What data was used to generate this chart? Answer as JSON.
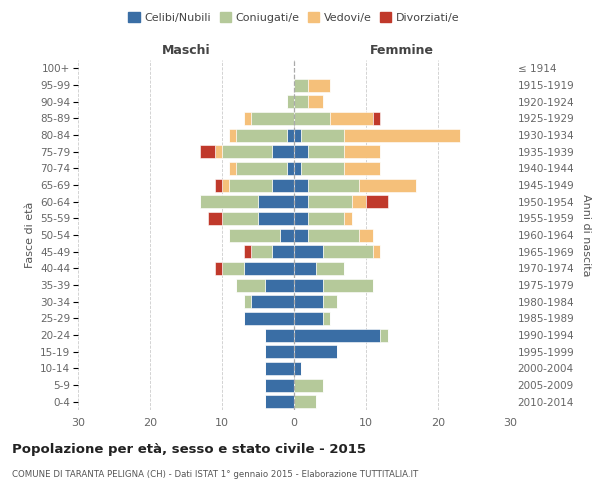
{
  "age_groups": [
    "0-4",
    "5-9",
    "10-14",
    "15-19",
    "20-24",
    "25-29",
    "30-34",
    "35-39",
    "40-44",
    "45-49",
    "50-54",
    "55-59",
    "60-64",
    "65-69",
    "70-74",
    "75-79",
    "80-84",
    "85-89",
    "90-94",
    "95-99",
    "100+"
  ],
  "birth_years": [
    "2010-2014",
    "2005-2009",
    "2000-2004",
    "1995-1999",
    "1990-1994",
    "1985-1989",
    "1980-1984",
    "1975-1979",
    "1970-1974",
    "1965-1969",
    "1960-1964",
    "1955-1959",
    "1950-1954",
    "1945-1949",
    "1940-1944",
    "1935-1939",
    "1930-1934",
    "1925-1929",
    "1920-1924",
    "1915-1919",
    "≤ 1914"
  ],
  "colors": {
    "celibi": "#3a6ea5",
    "coniugati": "#b5c99a",
    "vedovi": "#f5c07a",
    "divorziati": "#c0392b"
  },
  "maschi": {
    "celibi": [
      4,
      4,
      4,
      4,
      4,
      7,
      6,
      4,
      7,
      3,
      2,
      5,
      5,
      3,
      1,
      3,
      1,
      0,
      0,
      0,
      0
    ],
    "coniugati": [
      0,
      0,
      0,
      0,
      0,
      0,
      1,
      4,
      3,
      3,
      7,
      5,
      8,
      6,
      7,
      7,
      7,
      6,
      1,
      0,
      0
    ],
    "vedovi": [
      0,
      0,
      0,
      0,
      0,
      0,
      0,
      0,
      0,
      0,
      0,
      0,
      0,
      1,
      1,
      1,
      1,
      1,
      0,
      0,
      0
    ],
    "divorziati": [
      0,
      0,
      0,
      0,
      0,
      0,
      0,
      0,
      1,
      1,
      0,
      2,
      0,
      1,
      0,
      2,
      0,
      0,
      0,
      0,
      0
    ]
  },
  "femmine": {
    "celibi": [
      0,
      0,
      1,
      6,
      12,
      4,
      4,
      4,
      3,
      4,
      2,
      2,
      2,
      2,
      1,
      2,
      1,
      0,
      0,
      0,
      0
    ],
    "coniugati": [
      3,
      4,
      0,
      0,
      1,
      1,
      2,
      7,
      4,
      7,
      7,
      5,
      6,
      7,
      6,
      5,
      6,
      5,
      2,
      2,
      0
    ],
    "vedovi": [
      0,
      0,
      0,
      0,
      0,
      0,
      0,
      0,
      0,
      1,
      2,
      1,
      2,
      8,
      5,
      5,
      16,
      6,
      2,
      3,
      0
    ],
    "divorziati": [
      0,
      0,
      0,
      0,
      0,
      0,
      0,
      0,
      0,
      0,
      0,
      0,
      3,
      0,
      0,
      0,
      0,
      1,
      0,
      0,
      0
    ]
  },
  "xlim": 30,
  "title": "Popolazione per età, sesso e stato civile - 2015",
  "subtitle": "COMUNE DI TARANTA PELIGNA (CH) - Dati ISTAT 1° gennaio 2015 - Elaborazione TUTTITALIA.IT",
  "ylabel_left": "Fasce di età",
  "ylabel_right": "Anni di nascita",
  "xlabel_left": "Maschi",
  "xlabel_right": "Femmine"
}
